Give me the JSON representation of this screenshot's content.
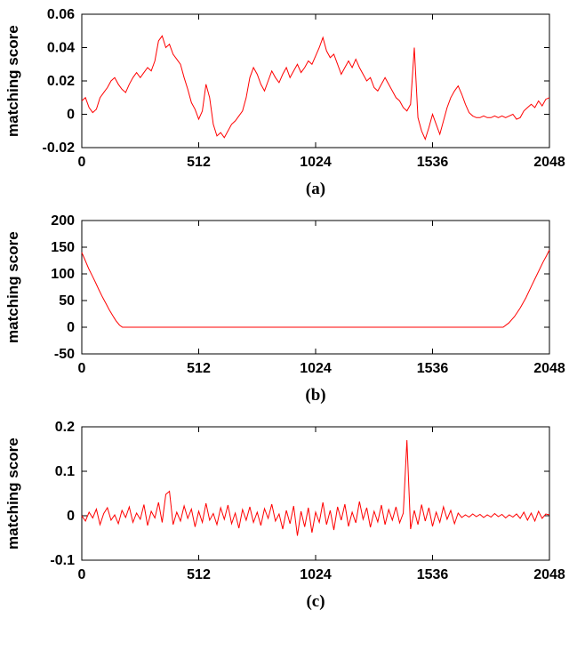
{
  "page": {
    "background": "#ffffff",
    "axis_color": "#000000"
  },
  "chart_data": [
    {
      "id": "a",
      "type": "line",
      "caption": "(a)",
      "ylabel": "matching score",
      "xlabel": "",
      "line_color": "#ff0000",
      "legend": "none",
      "grid": false,
      "xlim": [
        0,
        2048
      ],
      "ylim": [
        -0.02,
        0.06
      ],
      "xtick_values": [
        0,
        512,
        1024,
        1536,
        2048
      ],
      "xtick_labels": [
        "0",
        "512",
        "1024",
        "1536",
        "2048"
      ],
      "ytick_values": [
        -0.02,
        0,
        0.02,
        0.04,
        0.06
      ],
      "ytick_labels": [
        "-0.02",
        "0",
        "0.02",
        "0.04",
        "0.06"
      ],
      "x_start": 0,
      "x_step": 16,
      "y": [
        0.008,
        0.01,
        0.004,
        0.001,
        0.003,
        0.01,
        0.013,
        0.016,
        0.02,
        0.022,
        0.018,
        0.015,
        0.013,
        0.018,
        0.022,
        0.025,
        0.022,
        0.025,
        0.028,
        0.026,
        0.032,
        0.044,
        0.047,
        0.04,
        0.042,
        0.036,
        0.033,
        0.03,
        0.022,
        0.015,
        0.007,
        0.003,
        -0.003,
        0.002,
        0.018,
        0.01,
        -0.006,
        -0.013,
        -0.011,
        -0.014,
        -0.01,
        -0.006,
        -0.004,
        -0.001,
        0.002,
        0.01,
        0.022,
        0.028,
        0.024,
        0.018,
        0.014,
        0.02,
        0.026,
        0.022,
        0.019,
        0.024,
        0.028,
        0.022,
        0.026,
        0.03,
        0.025,
        0.028,
        0.032,
        0.03,
        0.035,
        0.04,
        0.046,
        0.038,
        0.034,
        0.036,
        0.03,
        0.024,
        0.028,
        0.032,
        0.028,
        0.033,
        0.028,
        0.024,
        0.02,
        0.022,
        0.016,
        0.014,
        0.018,
        0.022,
        0.018,
        0.014,
        0.01,
        0.008,
        0.004,
        0.002,
        0.006,
        0.04,
        -0.002,
        -0.01,
        -0.015,
        -0.008,
        0.0,
        -0.006,
        -0.012,
        -0.004,
        0.004,
        0.01,
        0.014,
        0.017,
        0.012,
        0.006,
        0.001,
        -0.001,
        -0.002,
        -0.002,
        -0.001,
        -0.002,
        -0.002,
        -0.001,
        -0.002,
        -0.001,
        -0.002,
        -0.001,
        0.0,
        -0.003,
        -0.002,
        0.002,
        0.004,
        0.006,
        0.004,
        0.008,
        0.005,
        0.009,
        0.01
      ]
    },
    {
      "id": "b",
      "type": "line",
      "caption": "(b)",
      "ylabel": "matching score",
      "xlabel": "",
      "line_color": "#ff0000",
      "legend": "none",
      "grid": false,
      "xlim": [
        0,
        2048
      ],
      "ylim": [
        -50,
        200
      ],
      "xtick_values": [
        0,
        512,
        1024,
        1536,
        2048
      ],
      "xtick_labels": [
        "0",
        "512",
        "1024",
        "1536",
        "2048"
      ],
      "ytick_values": [
        -50,
        0,
        50,
        100,
        150,
        200
      ],
      "ytick_labels": [
        "-50",
        "0",
        "50",
        "100",
        "150",
        "200"
      ],
      "x": [
        0,
        15,
        30,
        45,
        60,
        75,
        90,
        105,
        120,
        135,
        150,
        165,
        178,
        300,
        600,
        900,
        1200,
        1500,
        1700,
        1845,
        1870,
        1895,
        1920,
        1945,
        1970,
        1995,
        2020,
        2035,
        2048
      ],
      "y": [
        140,
        125,
        110,
        97,
        84,
        70,
        57,
        45,
        33,
        22,
        12,
        4,
        0,
        0,
        0,
        0,
        0,
        0,
        0,
        0,
        8,
        20,
        36,
        55,
        78,
        100,
        122,
        134,
        145
      ]
    },
    {
      "id": "c",
      "type": "line",
      "caption": "(c)",
      "ylabel": "matching score",
      "xlabel": "",
      "line_color": "#ff0000",
      "legend": "none",
      "grid": false,
      "xlim": [
        0,
        2048
      ],
      "ylim": [
        -0.1,
        0.2
      ],
      "xtick_values": [
        0,
        512,
        1024,
        1536,
        2048
      ],
      "xtick_labels": [
        "0",
        "512",
        "1024",
        "1536",
        "2048"
      ],
      "ytick_values": [
        -0.1,
        0,
        0.1,
        0.2
      ],
      "ytick_labels": [
        "-0.1",
        "0",
        "0.1",
        "0.2"
      ],
      "x_start": 0,
      "x_step": 16,
      "y": [
        0.0,
        -0.012,
        0.008,
        -0.005,
        0.015,
        -0.02,
        0.005,
        0.018,
        -0.01,
        0.002,
        -0.018,
        0.012,
        -0.004,
        0.02,
        -0.015,
        0.006,
        -0.008,
        0.025,
        -0.022,
        0.01,
        -0.005,
        0.03,
        -0.015,
        0.048,
        0.055,
        -0.02,
        0.008,
        -0.012,
        0.022,
        -0.006,
        0.015,
        -0.025,
        0.01,
        -0.015,
        0.028,
        -0.01,
        0.005,
        -0.02,
        0.018,
        -0.008,
        0.024,
        -0.018,
        0.006,
        -0.028,
        0.014,
        -0.01,
        0.02,
        -0.015,
        0.008,
        -0.022,
        0.016,
        -0.006,
        0.026,
        -0.012,
        0.004,
        -0.03,
        0.012,
        -0.018,
        0.022,
        -0.045,
        0.01,
        -0.025,
        0.018,
        -0.038,
        0.008,
        -0.015,
        0.03,
        -0.02,
        0.012,
        -0.032,
        0.02,
        -0.01,
        0.026,
        -0.024,
        0.008,
        -0.016,
        0.032,
        -0.008,
        0.018,
        -0.026,
        0.01,
        -0.014,
        0.024,
        -0.02,
        0.014,
        -0.01,
        0.02,
        -0.016,
        0.006,
        0.17,
        -0.03,
        0.012,
        -0.02,
        0.025,
        -0.012,
        0.018,
        -0.024,
        0.008,
        -0.015,
        0.02,
        -0.008,
        0.012,
        -0.018,
        0.006,
        -0.004,
        0.002,
        -0.003,
        0.004,
        -0.002,
        0.003,
        -0.004,
        0.002,
        -0.003,
        0.005,
        -0.002,
        0.003,
        -0.005,
        0.002,
        -0.003,
        0.004,
        -0.006,
        0.008,
        -0.01,
        0.006,
        -0.012,
        0.01,
        -0.006,
        0.004,
        0.002
      ]
    }
  ]
}
